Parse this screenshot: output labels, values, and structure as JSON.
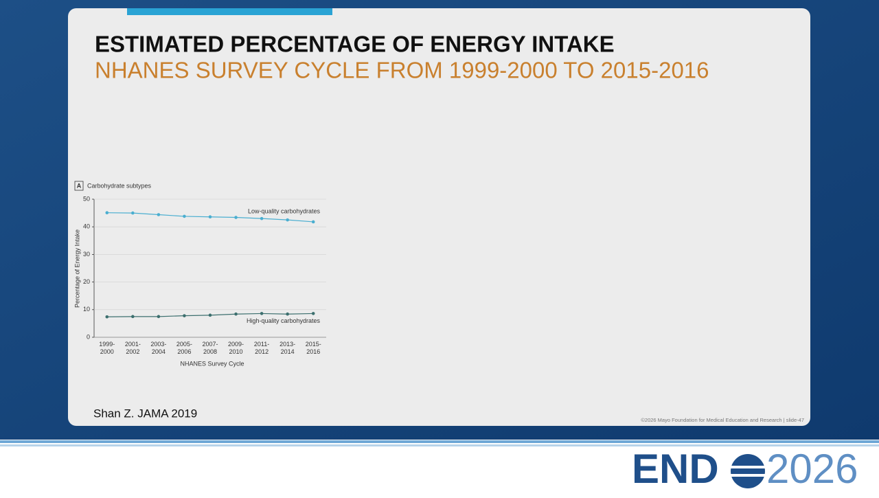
{
  "slide": {
    "title": "ESTIMATED PERCENTAGE OF ENERGY INTAKE",
    "subtitle": "NHANES SURVEY CYCLE FROM 1999-2000 TO 2015-2016",
    "citation": "Shan Z. JAMA 2019",
    "footer": "©2026 Mayo Foundation for Medical Education and Research  |  slide-47",
    "logo_left": "END",
    "logo_right": "2026"
  },
  "chart_data": {
    "type": "line",
    "panel_label": "A",
    "title": "Carbohydrate subtypes",
    "x_label": "NHANES Survey Cycle",
    "y_label": "Percentage of Energy Intake",
    "categories": [
      "1999-2000",
      "2001-2002",
      "2003-2004",
      "2005-2006",
      "2007-2008",
      "2009-2010",
      "2011-2012",
      "2013-2014",
      "2015-2016"
    ],
    "series": [
      {
        "name": "Low-quality carbohydrates",
        "color": "#4aaed0",
        "values": [
          45.1,
          45.0,
          44.4,
          43.8,
          43.6,
          43.4,
          43.0,
          42.5,
          41.8
        ]
      },
      {
        "name": "High-quality carbohydrates",
        "color": "#3c6f6e",
        "values": [
          7.4,
          7.5,
          7.5,
          7.8,
          8.0,
          8.4,
          8.6,
          8.4,
          8.6
        ]
      }
    ],
    "ylim": [
      0,
      50
    ],
    "yticks": [
      0,
      10,
      20,
      30,
      40,
      50
    ],
    "grid": true
  }
}
